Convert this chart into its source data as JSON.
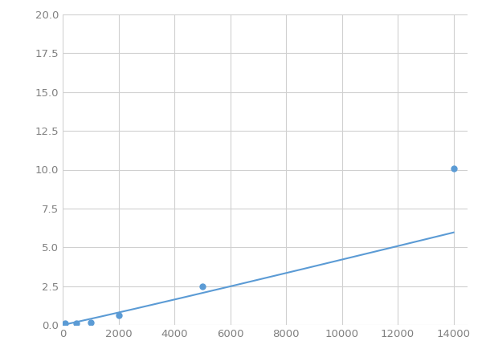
{
  "x_points": [
    100,
    500,
    1000,
    2000,
    5000,
    14000
  ],
  "y_points": [
    0.08,
    0.12,
    0.18,
    0.6,
    2.5,
    10.1
  ],
  "line_color": "#5b9bd5",
  "marker_color": "#5b9bd5",
  "marker_size": 5,
  "xlim": [
    0,
    14500
  ],
  "ylim": [
    0,
    20.0
  ],
  "xticks": [
    0,
    2000,
    4000,
    6000,
    8000,
    10000,
    12000,
    14000
  ],
  "yticks": [
    0.0,
    2.5,
    5.0,
    7.5,
    10.0,
    12.5,
    15.0,
    17.5,
    20.0
  ],
  "grid_color": "#d0d0d0",
  "background_color": "#ffffff",
  "figsize": [
    6.0,
    4.5
  ],
  "dpi": 100,
  "tick_fontsize": 9.5,
  "tick_color": "#808080"
}
